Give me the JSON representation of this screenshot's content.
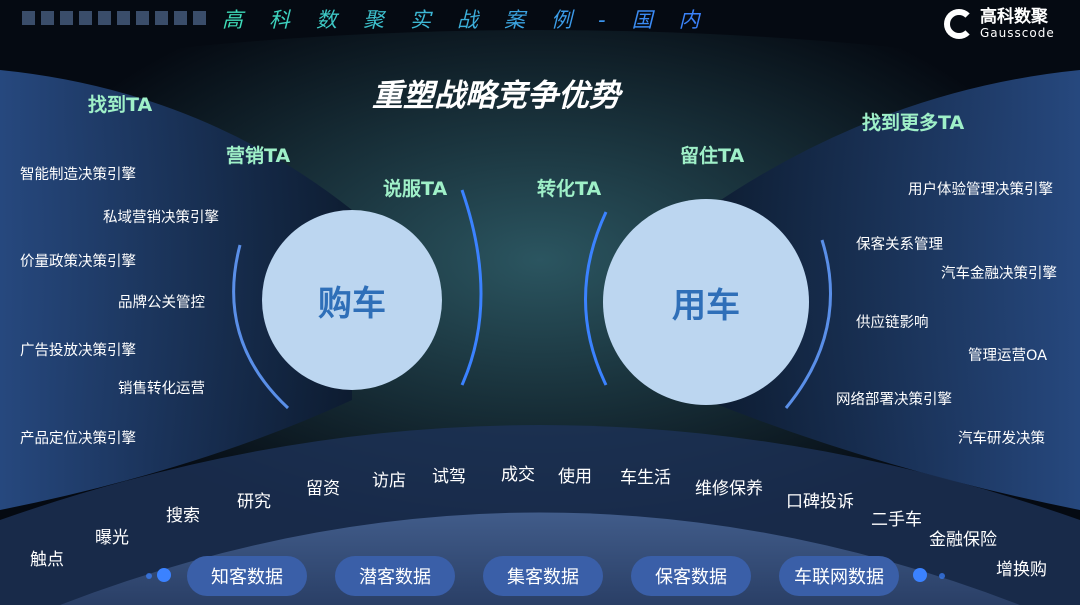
{
  "header": {
    "title": "高科数聚实战案例-国内",
    "logo_cn": "高科数聚",
    "logo_en": "Gausscode"
  },
  "main_title": "重塑战略竞争优势",
  "ta_labels": [
    "找到TA",
    "营销TA",
    "说服TA",
    "转化TA",
    "留住TA",
    "找到更多TA"
  ],
  "circles": {
    "buy": "购车",
    "use": "用车"
  },
  "left_engines": [
    "智能制造决策引擎",
    "私域营销决策引擎",
    "价量政策决策引擎",
    "品牌公关管控",
    "广告投放决策引擎",
    "销售转化运营",
    "产品定位决策引擎"
  ],
  "right_engines": [
    "用户体验管理决策引擎",
    "保客关系管理",
    "汽车金融决策引擎",
    "供应链影响",
    "管理运营OA",
    "网络部署决策引擎",
    "汽车研发决策"
  ],
  "stages": [
    "触点",
    "曝光",
    "搜索",
    "研究",
    "留资",
    "访店",
    "试驾",
    "成交",
    "使用",
    "车生活",
    "维修保养",
    "口碑投诉",
    "二手车",
    "金融保险",
    "增换购"
  ],
  "data_pills": [
    "知客数据",
    "潜客数据",
    "集客数据",
    "保客数据",
    "车联网数据"
  ],
  "colors": {
    "ta": "#9ff0c8",
    "circle": "#bcd6f0",
    "circle_text": "#2f6fb8",
    "pill": "#3a5fa8",
    "accent": "#3b82ff"
  }
}
